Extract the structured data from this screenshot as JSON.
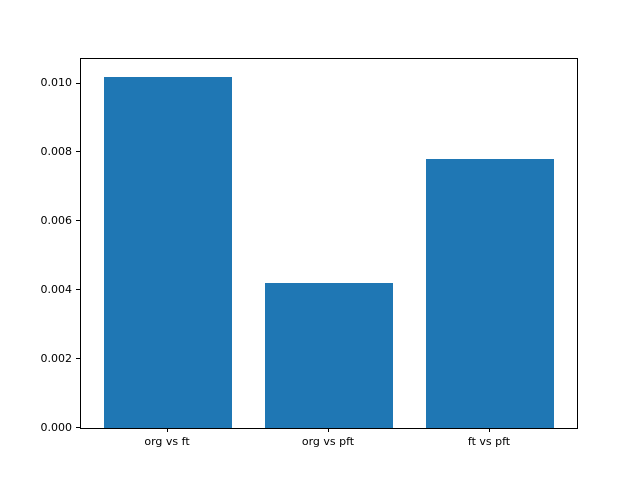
{
  "chart_data": {
    "type": "bar",
    "categories": [
      "org vs ft",
      "org vs pft",
      "ft vs pft"
    ],
    "values": [
      0.0102,
      0.0042,
      0.0078
    ],
    "title": "",
    "xlabel": "",
    "ylabel": "",
    "ylim": [
      0,
      0.01071
    ],
    "yticks": [
      0.0,
      0.002,
      0.004,
      0.006,
      0.008,
      0.01
    ],
    "ytick_labels": [
      "0.000",
      "0.002",
      "0.004",
      "0.006",
      "0.008",
      "0.010"
    ],
    "bar_color": "#1f77b4",
    "bar_width_fraction": 0.8,
    "x_margin": 0.05,
    "grid": false,
    "legend": null
  }
}
